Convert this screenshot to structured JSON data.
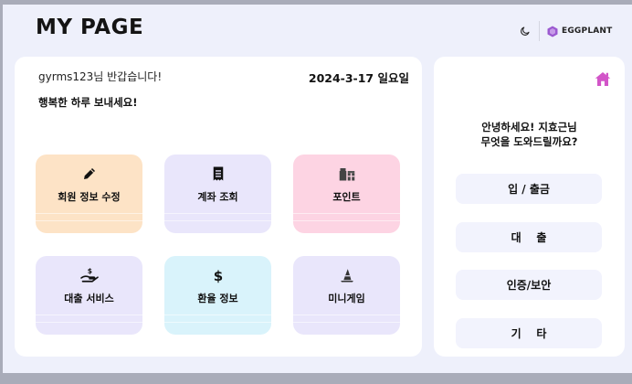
{
  "header": {
    "title": "MY PAGE",
    "theme_icon": "moon-icon",
    "brand_icon": "hexagon-logo-icon",
    "brand_name": "EGGPLANT",
    "brand_color": "#9b59d0"
  },
  "main": {
    "greeting": "gyrms123님 반갑습니다!",
    "date": "2024-3-17 일요일",
    "wish": "행복한 하루 보내세요!",
    "tiles": [
      {
        "label": "회원 정보 수정",
        "icon": "pencil-icon",
        "color": "#fde3c6"
      },
      {
        "label": "계좌 조회",
        "icon": "receipt-icon",
        "color": "#e9e6fb"
      },
      {
        "label": "포인트",
        "icon": "gift-icon",
        "color": "#fdd4e3"
      },
      {
        "label": "대출 서비스",
        "icon": "hand-money-icon",
        "color": "#e9e6fb"
      },
      {
        "label": "환율 정보",
        "icon": "dollar-icon",
        "color": "#d9f3fb"
      },
      {
        "label": "미니게임",
        "icon": "wizard-hat-icon",
        "color": "#e9e6fb"
      }
    ]
  },
  "side": {
    "home_icon": "home-icon",
    "home_color": "#d255c8",
    "assist_line1": "안녕하세요! 지효근님",
    "assist_line2": "무엇을 도와드릴까요?",
    "menu": [
      {
        "label": "입 / 출금"
      },
      {
        "label": "대    출"
      },
      {
        "label": "인증/보안"
      },
      {
        "label": "기    타"
      }
    ]
  }
}
